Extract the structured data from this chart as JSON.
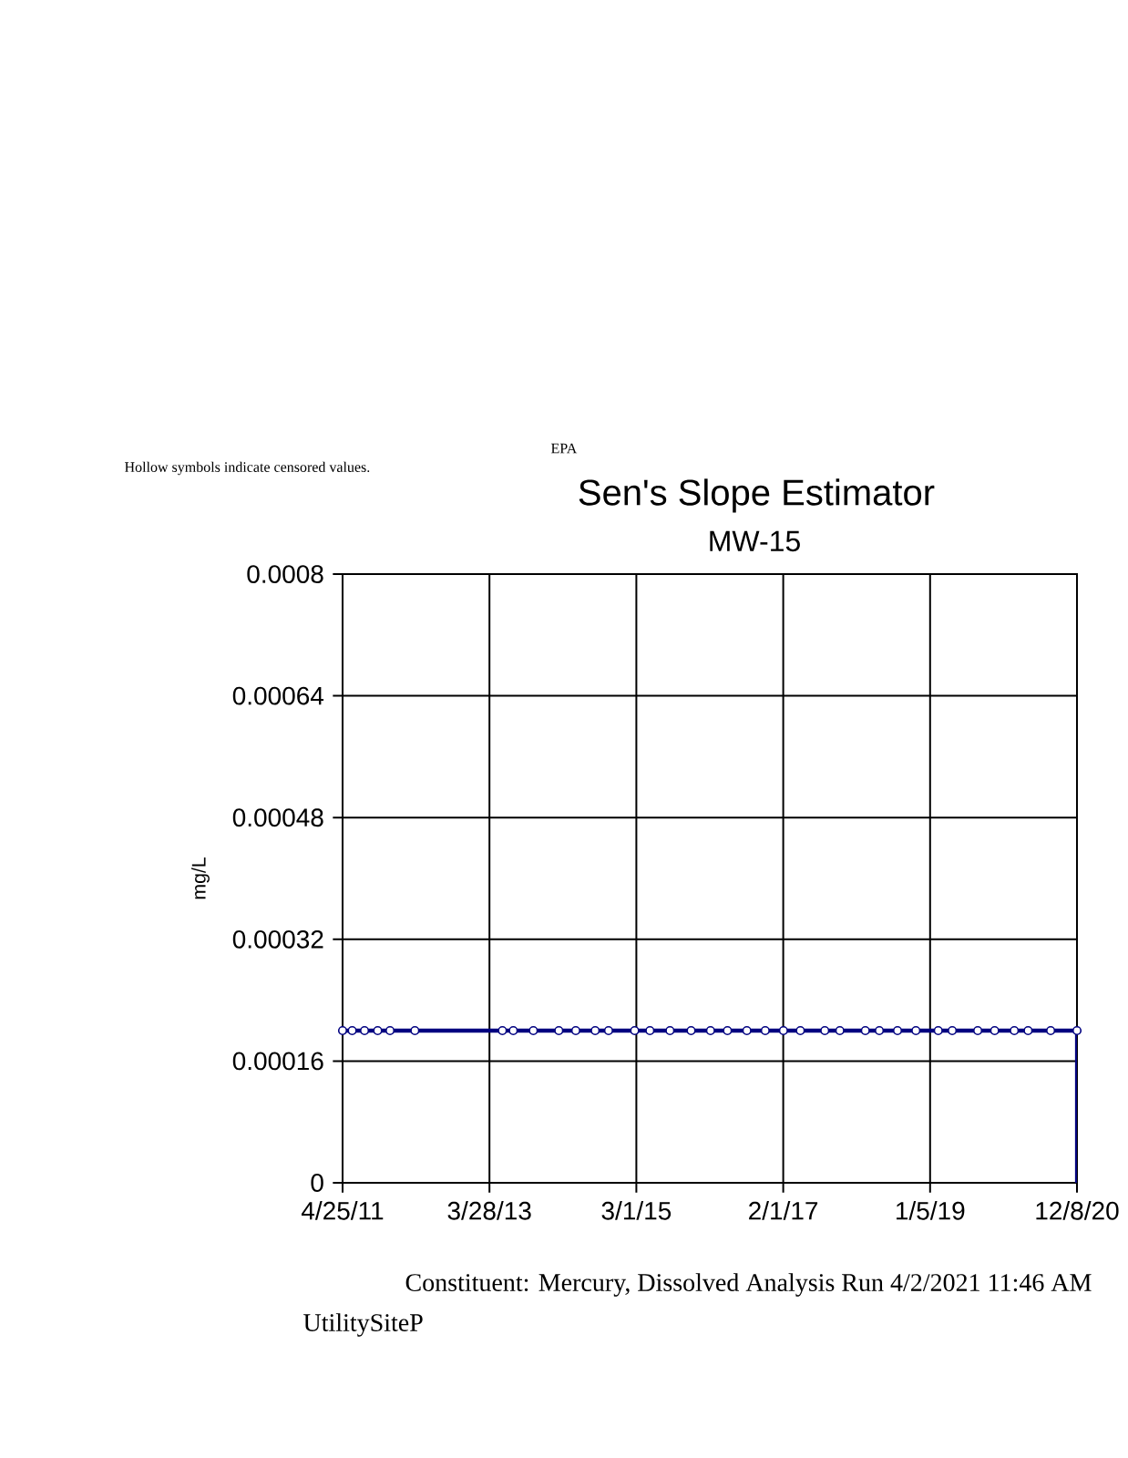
{
  "chart_data": {
    "type": "line",
    "title": "Sen's Slope Estimator",
    "subtitle": "MW-15",
    "ylabel": "mg/L",
    "annotations": [
      "EPA",
      "Hollow symbols indicate censored values.",
      "Constituent: Mercury, Dissolved Analysis Run 4/2/2021 11:46 AM",
      "UtilitySiteP"
    ],
    "xlim": [
      "2011-04-25",
      "2020-12-08"
    ],
    "xticks": [
      {
        "value": "2011-04-25",
        "label": "4/25/11"
      },
      {
        "value": "2013-03-28",
        "label": "3/28/13"
      },
      {
        "value": "2015-03-01",
        "label": "3/1/15"
      },
      {
        "value": "2017-02-01",
        "label": "2/1/17"
      },
      {
        "value": "2019-01-05",
        "label": "1/5/19"
      },
      {
        "value": "2020-12-08",
        "label": "12/8/20"
      }
    ],
    "ylim": [
      0,
      0.0008
    ],
    "yticks": [
      0,
      0.00016,
      0.00032,
      0.00048,
      0.00064,
      0.0008
    ],
    "grid": true,
    "marker": "circle",
    "line_style": "solid",
    "series": [
      {
        "color": "#000080",
        "x": [
          "2011-04-25",
          "2011-06-10",
          "2011-08-08",
          "2011-10-10",
          "2011-12-08",
          "2012-04-05",
          "2013-05-29",
          "2013-07-20",
          "2013-10-24",
          "2014-02-23",
          "2014-05-15",
          "2014-08-16",
          "2014-10-19",
          "2015-02-21",
          "2015-05-05",
          "2015-08-09",
          "2015-11-18",
          "2016-02-19",
          "2016-05-10",
          "2016-08-11",
          "2016-11-07",
          "2017-02-02",
          "2017-04-24",
          "2017-08-19",
          "2017-10-30",
          "2018-03-01",
          "2018-05-07",
          "2018-08-02",
          "2018-10-29",
          "2019-02-13",
          "2019-04-21",
          "2019-08-21",
          "2019-11-10",
          "2020-02-12",
          "2020-04-18",
          "2020-08-04",
          "2020-12-08"
        ],
        "values": [
          0.0002,
          0.0002,
          0.0002,
          0.0002,
          0.0002,
          0.0002,
          0.0002,
          0.0002,
          0.0002,
          0.0002,
          0.0002,
          0.0002,
          0.0002,
          0.0002,
          0.0002,
          0.0002,
          0.0002,
          0.0002,
          0.0002,
          0.0002,
          0.0002,
          0.0002,
          0.0002,
          0.0002,
          0.0002,
          0.0002,
          0.0002,
          0.0002,
          0.0002,
          0.0002,
          0.0002,
          0.0002,
          0.0002,
          0.0002,
          0.0002,
          0.0002,
          0.0002
        ]
      },
      {
        "color": "#000080",
        "marker": "none",
        "x": [
          "2020-12-08",
          "2020-12-08"
        ],
        "values": [
          0.0002,
          0
        ]
      }
    ]
  }
}
